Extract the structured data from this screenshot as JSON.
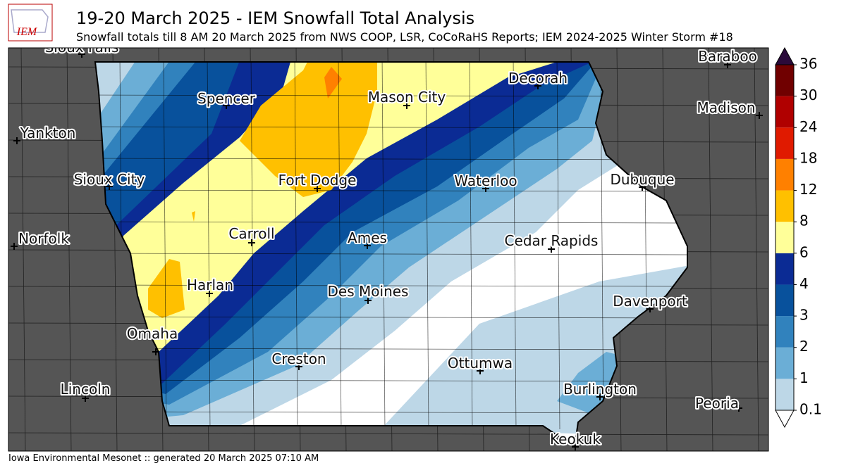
{
  "header": {
    "logo": "IEM",
    "title": "19-20 March 2025 - IEM Snowfall Total Analysis",
    "subtitle": "Snowfall totals till 8 AM 20 March 2025 from NWS COOP, LSR, CoCoRaHS Reports; IEM 2024-2025 Winter Storm #18"
  },
  "cities": [
    "Sioux Falls",
    "Baraboo",
    "Spencer",
    "Mason City",
    "Decorah",
    "Madison",
    "Yankton",
    "Sioux City",
    "Fort Dodge",
    "Waterloo",
    "Dubuque",
    "Norfolk",
    "Carroll",
    "Ames",
    "Cedar Rapids",
    "Harlan",
    "Des Moines",
    "Davenport",
    "Omaha",
    "Creston",
    "Ottumwa",
    "Lincoln",
    "Burlington",
    "Peoria",
    "Keokuk"
  ],
  "colorbar": {
    "levels": [
      0.1,
      1,
      2,
      3,
      4,
      6,
      8,
      12,
      18,
      24,
      30,
      36
    ],
    "colors": [
      "#bdd7e7",
      "#6baed6",
      "#3182bd",
      "#08519c",
      "#0b2b94",
      "#ffff99",
      "#ffc000",
      "#ff8000",
      "#e01a00",
      "#b00000",
      "#700000"
    ],
    "under_color": "#ffffff",
    "over_color": "#2a0a3a"
  },
  "footer": "Iowa Environmental Mesonet :: generated 20 March 2025 07:10 AM"
}
